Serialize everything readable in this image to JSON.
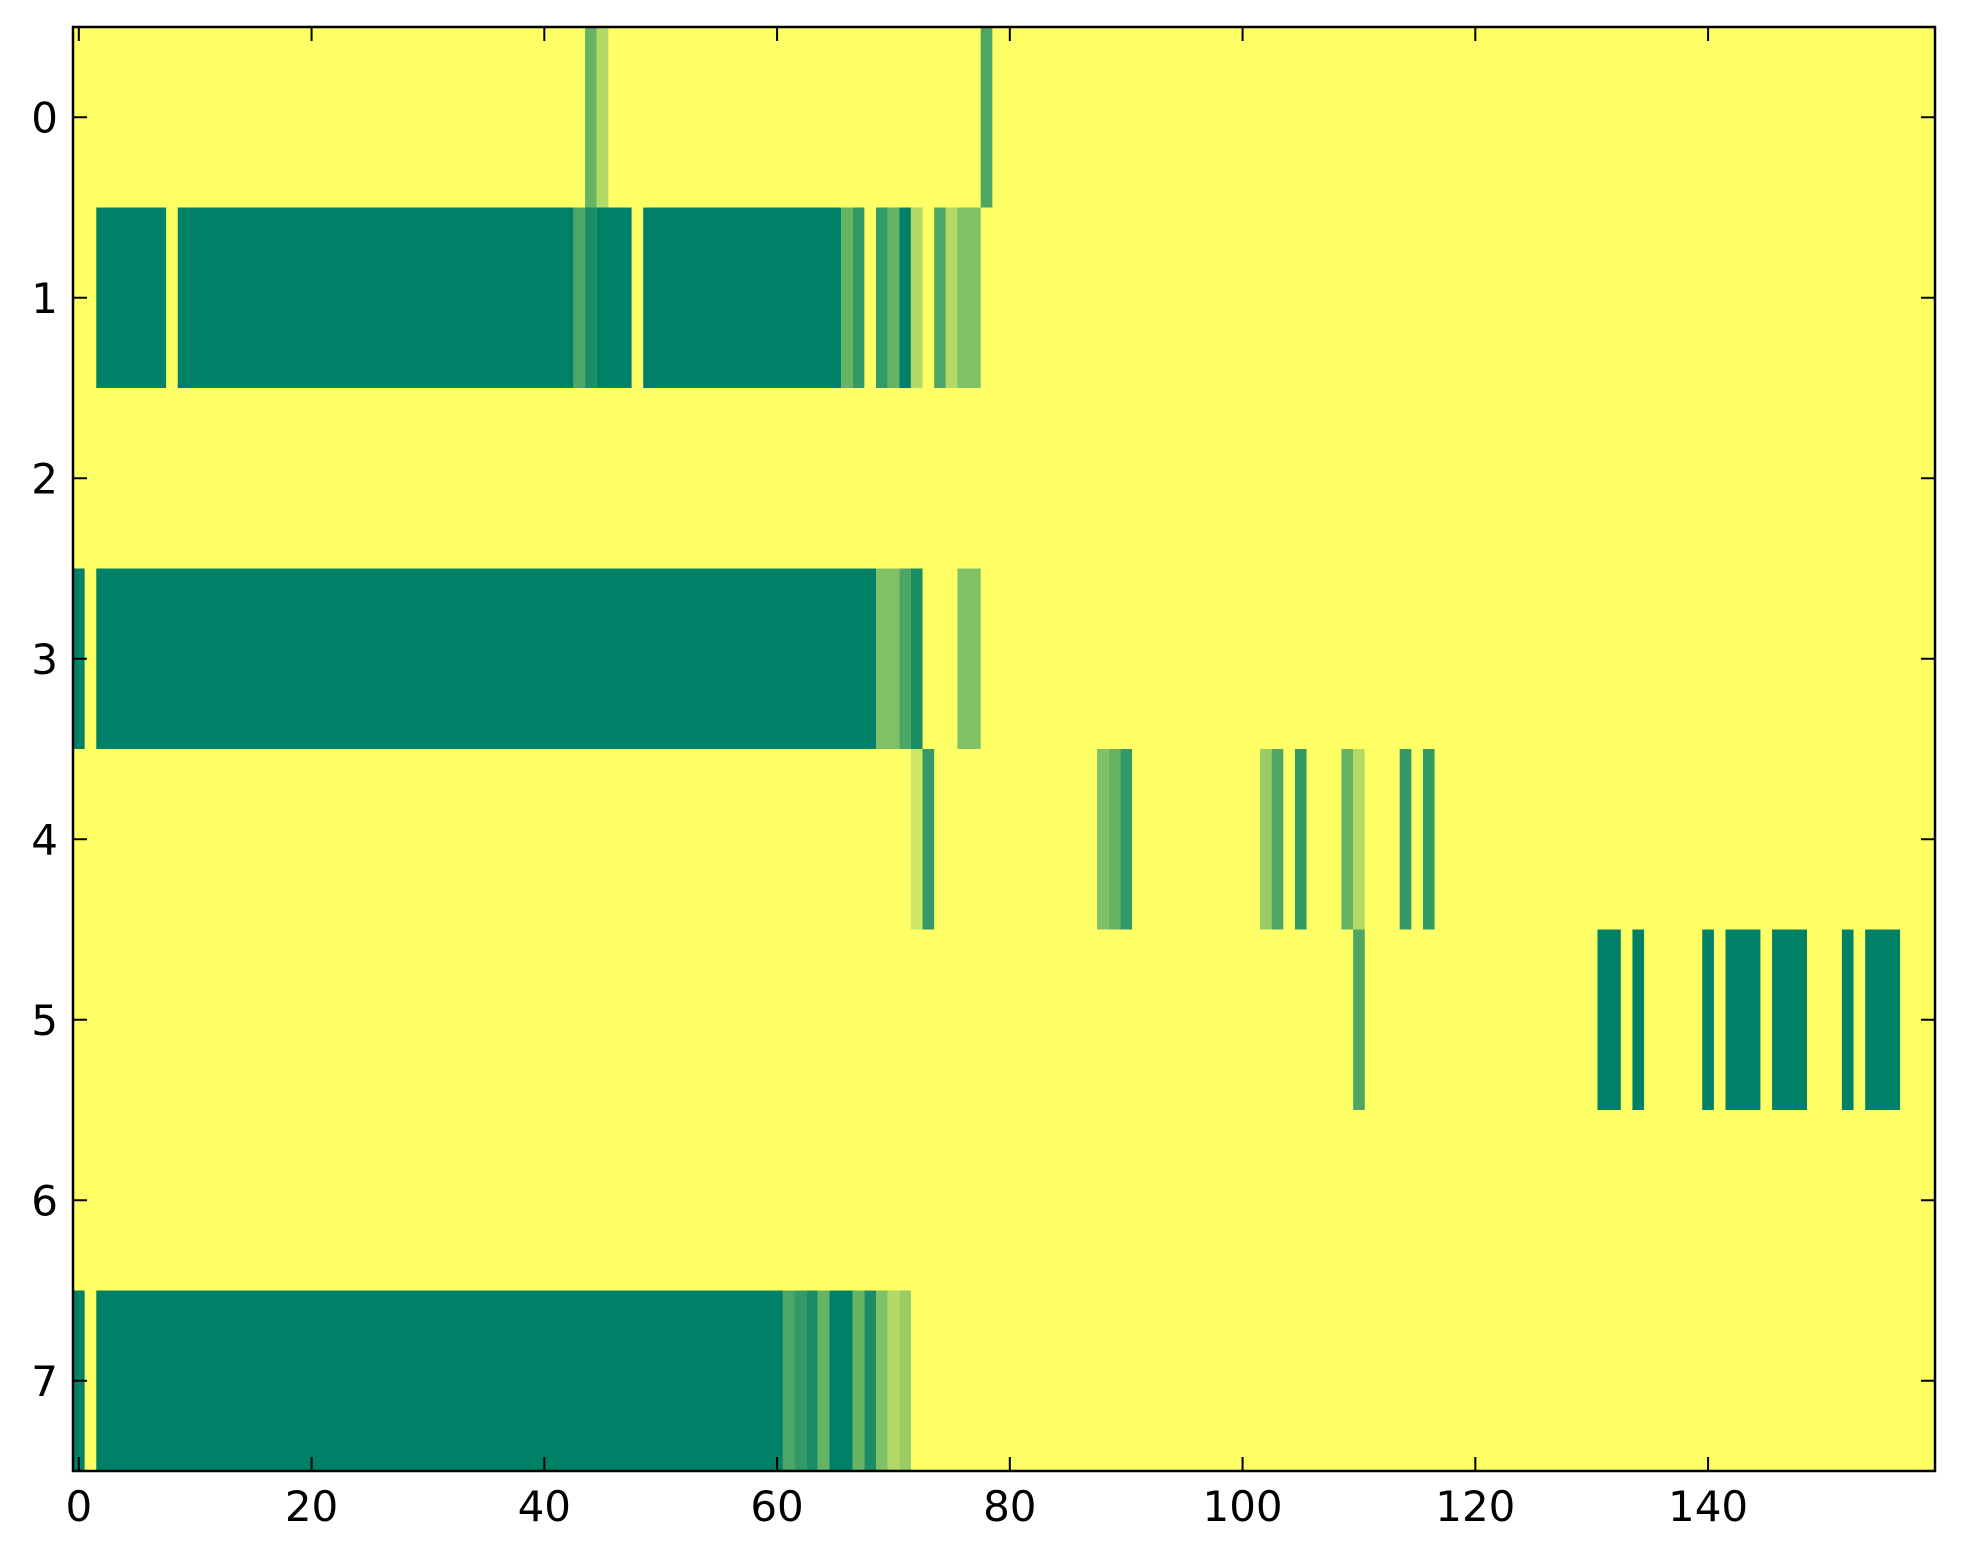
{
  "chart_data": {
    "type": "heatmap",
    "title": "",
    "xlabel": "",
    "ylabel": "",
    "xlim": [
      -0.5,
      159.5
    ],
    "ylim": [
      7.5,
      -0.5
    ],
    "x_ticks": [
      0,
      20,
      40,
      60,
      80,
      100,
      120,
      140
    ],
    "x_tick_labels": [
      "0",
      "20",
      "40",
      "60",
      "80",
      "100",
      "120",
      "140"
    ],
    "y_ticks": [
      0,
      1,
      2,
      3,
      4,
      5,
      6,
      7
    ],
    "y_tick_labels": [
      "0",
      "1",
      "2",
      "3",
      "4",
      "5",
      "6",
      "7"
    ],
    "colormap": "summer_r",
    "background_value": 0,
    "value_range": [
      0,
      1
    ],
    "colors": {
      "low": "#ffff66",
      "high": "#008066",
      "axis": "#000000"
    },
    "grid": false,
    "rows": [
      {
        "row": 0,
        "runs": [
          [
            44,
            44,
            0.6
          ],
          [
            45,
            45,
            0.3
          ],
          [
            78,
            78,
            0.7
          ]
        ]
      },
      {
        "row": 1,
        "runs": [
          [
            2,
            7,
            1.0
          ],
          [
            9,
            42,
            1.0
          ],
          [
            43,
            43,
            0.7
          ],
          [
            44,
            44,
            0.9
          ],
          [
            45,
            47,
            1.0
          ],
          [
            49,
            65,
            1.0
          ],
          [
            66,
            66,
            0.6
          ],
          [
            67,
            67,
            0.8
          ],
          [
            69,
            69,
            0.8
          ],
          [
            70,
            70,
            0.6
          ],
          [
            71,
            71,
            1.0
          ],
          [
            72,
            72,
            0.3
          ],
          [
            74,
            74,
            0.7
          ],
          [
            75,
            75,
            0.3
          ],
          [
            76,
            77,
            0.5
          ]
        ]
      },
      {
        "row": 2,
        "runs": []
      },
      {
        "row": 3,
        "runs": [
          [
            0,
            0,
            1.0
          ],
          [
            2,
            68,
            1.0
          ],
          [
            69,
            70,
            0.5
          ],
          [
            71,
            71,
            0.7
          ],
          [
            72,
            72,
            0.9
          ],
          [
            76,
            77,
            0.5
          ]
        ]
      },
      {
        "row": 4,
        "runs": [
          [
            72,
            72,
            0.2
          ],
          [
            73,
            73,
            0.8
          ],
          [
            88,
            88,
            0.5
          ],
          [
            89,
            89,
            0.6
          ],
          [
            90,
            90,
            0.8
          ],
          [
            102,
            102,
            0.4
          ],
          [
            103,
            103,
            0.7
          ],
          [
            105,
            105,
            0.8
          ],
          [
            109,
            109,
            0.6
          ],
          [
            110,
            110,
            0.3
          ],
          [
            114,
            114,
            0.8
          ],
          [
            116,
            116,
            0.8
          ]
        ]
      },
      {
        "row": 5,
        "runs": [
          [
            110,
            110,
            0.7
          ],
          [
            131,
            132,
            1.0
          ],
          [
            134,
            134,
            1.0
          ],
          [
            140,
            140,
            1.0
          ],
          [
            142,
            144,
            1.0
          ],
          [
            146,
            148,
            1.0
          ],
          [
            152,
            152,
            1.0
          ],
          [
            154,
            156,
            1.0
          ]
        ]
      },
      {
        "row": 6,
        "runs": []
      },
      {
        "row": 7,
        "runs": [
          [
            0,
            0,
            1.0
          ],
          [
            2,
            60,
            1.0
          ],
          [
            61,
            61,
            0.7
          ],
          [
            62,
            62,
            0.8
          ],
          [
            63,
            63,
            0.9
          ],
          [
            64,
            64,
            0.6
          ],
          [
            65,
            66,
            1.0
          ],
          [
            67,
            67,
            0.6
          ],
          [
            68,
            68,
            0.9
          ],
          [
            69,
            69,
            0.5
          ],
          [
            70,
            70,
            0.3
          ],
          [
            71,
            71,
            0.4
          ]
        ]
      }
    ]
  }
}
